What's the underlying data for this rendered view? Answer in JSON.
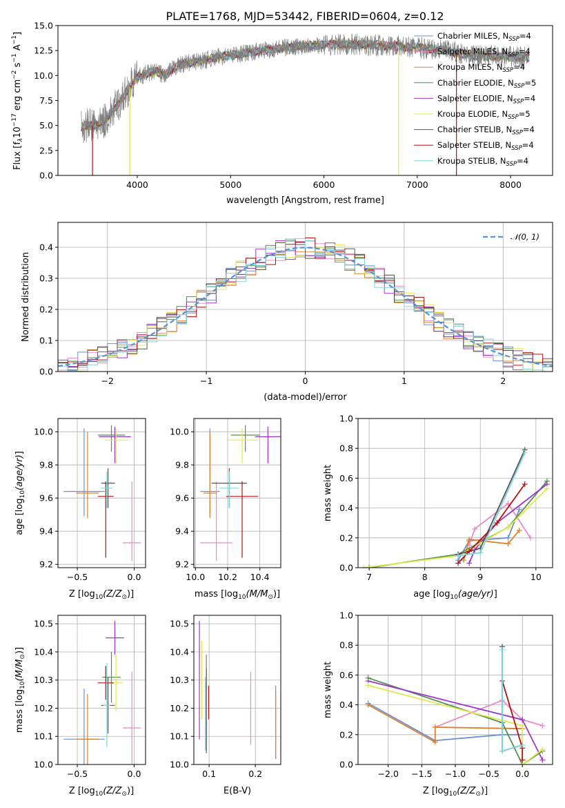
{
  "figure": {
    "title": "PLATE=1768, MJD=53442, FIBERID=0604, z=0.12",
    "colors": {
      "chabrier_miles": "#6b8fd6",
      "salpeter_miles": "#e88bc4",
      "kroupa_miles": "#d9822b",
      "chabrier_elodie": "#4f8f4f",
      "salpeter_elodie": "#a033c8",
      "kroupa_elodie": "#e2e84a",
      "chabrier_stelib": "#555555",
      "salpeter_stelib": "#b01010",
      "kroupa_stelib": "#7dd6e0",
      "data": "#808080",
      "gaussian": "#5b8fd6"
    }
  },
  "chart_data": [
    {
      "id": "spectrum",
      "type": "line",
      "xlabel": "wavelength [Angstrom, rest frame]",
      "ylabel": "Flux [$f_\\lambda 10^{-17}$ erg cm$^{-2}$ s$^{-1}$ A$^{-1}$]",
      "ylabel_text": "Flux [f",
      "xlim": [
        3150,
        8450
      ],
      "ylim": [
        0,
        15
      ],
      "xticks": [
        4000,
        5000,
        6000,
        7000,
        8000
      ],
      "yticks": [
        0.0,
        2.5,
        5.0,
        7.5,
        10.0,
        12.5,
        15.0
      ],
      "xtick_labels": [
        "4000",
        "5000",
        "6000",
        "7000",
        "8000"
      ],
      "ytick_labels": [
        "0.0",
        "2.5",
        "5.0",
        "7.5",
        "10.0",
        "12.5",
        "15.0"
      ],
      "grid": false,
      "legend_placement": "right",
      "legend": [
        {
          "text": "Chabrier MILES, N",
          "sub": "SSP",
          "suffix": "=4",
          "color_key": "chabrier_miles"
        },
        {
          "text": "Salpeter MILES, N",
          "sub": "SSP",
          "suffix": "=4",
          "color_key": "salpeter_miles"
        },
        {
          "text": "Kroupa MILES, N",
          "sub": "SSP",
          "suffix": "=4",
          "color_key": "kroupa_miles"
        },
        {
          "text": "Chabrier ELODIE, N",
          "sub": "SSP",
          "suffix": "=5",
          "color_key": "chabrier_elodie"
        },
        {
          "text": "Salpeter ELODIE, N",
          "sub": "SSP",
          "suffix": "=4",
          "color_key": "salpeter_elodie"
        },
        {
          "text": "Kroupa ELODIE, N",
          "sub": "SSP",
          "suffix": "=5",
          "color_key": "kroupa_elodie"
        },
        {
          "text": "Chabrier STELIB, N",
          "sub": "SSP",
          "suffix": "=4",
          "color_key": "chabrier_stelib"
        },
        {
          "text": "Salpeter STELIB, N",
          "sub": "SSP",
          "suffix": "=4",
          "color_key": "salpeter_stelib"
        },
        {
          "text": "Kroupa STELIB, N",
          "sub": "SSP",
          "suffix": "=4",
          "color_key": "kroupa_stelib"
        }
      ],
      "continuum": {
        "x": [
          3400,
          3500,
          3600,
          3700,
          3800,
          3900,
          4000,
          4100,
          4200,
          4300,
          4400,
          4500,
          4700,
          4900,
          5200,
          5500,
          5800,
          6100,
          6400,
          6700,
          7000,
          7300,
          7600,
          7900,
          8200
        ],
        "y": [
          4.9,
          5.0,
          5.0,
          6.0,
          7.2,
          8.6,
          9.8,
          10.2,
          10.4,
          10.0,
          10.8,
          11.2,
          11.5,
          11.9,
          12.3,
          12.7,
          13.0,
          13.1,
          13.1,
          13.0,
          12.8,
          12.5,
          12.0,
          11.9,
          11.8
        ]
      },
      "drops": [
        {
          "x": 3520,
          "color_key": "salpeter_stelib"
        },
        {
          "x": 3920,
          "color_key": "kroupa_elodie"
        },
        {
          "x": 6800,
          "color_key": "kroupa_elodie"
        },
        {
          "x": 7420,
          "color_key": "salpeter_stelib"
        }
      ]
    },
    {
      "id": "residuals",
      "type": "line",
      "xlabel": "(data-model)/error",
      "ylabel": "Normed distribution",
      "xlim": [
        -2.5,
        2.5
      ],
      "ylim": [
        0,
        0.48
      ],
      "xticks": [
        -2,
        -1,
        0,
        1,
        2
      ],
      "yticks": [
        0.0,
        0.1,
        0.2,
        0.3,
        0.4
      ],
      "xtick_labels": [
        "−2",
        "−1",
        "0",
        "1",
        "2"
      ],
      "ytick_labels": [
        "0.0",
        "0.1",
        "0.2",
        "0.3",
        "0.4"
      ],
      "grid": true,
      "legend_placement": "top-right",
      "legend": [
        {
          "text": "𝒩(0, 1)",
          "color_key": "gaussian"
        }
      ],
      "bin_edges_start": -2.5,
      "bin_width": 0.1
    },
    {
      "id": "age_vs_Z",
      "type": "scatter",
      "xlabel": "Z [log",
      "ylabel": "age  [log",
      "xlim": [
        -0.67,
        0.1
      ],
      "ylim": [
        9.18,
        10.08
      ],
      "xticks": [
        -0.5,
        0.0
      ],
      "yticks": [
        9.2,
        9.4,
        9.6,
        9.8,
        10.0
      ],
      "xtick_labels": [
        "−0.5",
        "0.0"
      ],
      "ytick_labels": [
        "9.2",
        "9.4",
        "9.6",
        "9.8",
        "10.0"
      ],
      "grid": true,
      "points": [
        {
          "x": -0.44,
          "y": 9.64,
          "xerr": 0.18,
          "yerr": [
            0.15,
            0.38
          ],
          "color_key": "chabrier_miles"
        },
        {
          "x": -0.02,
          "y": 9.33,
          "xerr": 0.08,
          "yerr": [
            0.11,
            0.37
          ],
          "color_key": "salpeter_miles"
        },
        {
          "x": -0.41,
          "y": 9.63,
          "xerr": 0.1,
          "yerr": [
            0.15,
            0.37
          ],
          "color_key": "kroupa_miles"
        },
        {
          "x": -0.2,
          "y": 9.98,
          "xerr": 0.12,
          "yerr": [
            0.1,
            0.06
          ],
          "color_key": "chabrier_elodie"
        },
        {
          "x": -0.17,
          "y": 9.97,
          "xerr": 0.14,
          "yerr": [
            0.16,
            0.06
          ],
          "color_key": "salpeter_elodie"
        },
        {
          "x": -0.16,
          "y": 9.95,
          "xerr": 0.1,
          "yerr": [
            0.14,
            0.07
          ],
          "color_key": "kroupa_elodie"
        },
        {
          "x": -0.23,
          "y": 9.69,
          "xerr": 0.06,
          "yerr": [
            0.15,
            0.09
          ],
          "color_key": "chabrier_stelib"
        },
        {
          "x": -0.25,
          "y": 9.61,
          "xerr": 0.07,
          "yerr": [
            0.37,
            0.09
          ],
          "color_key": "salpeter_stelib"
        },
        {
          "x": -0.24,
          "y": 9.66,
          "xerr": 0.05,
          "yerr": [
            0.12,
            0.1
          ],
          "color_key": "kroupa_stelib"
        }
      ]
    },
    {
      "id": "age_vs_mass",
      "type": "scatter",
      "xlabel": "mass [log",
      "xlim": [
        9.99,
        10.53
      ],
      "ylim": [
        9.18,
        10.08
      ],
      "xticks": [
        10.0,
        10.2,
        10.4
      ],
      "yticks": [
        9.2,
        9.4,
        9.6,
        9.8,
        10.0
      ],
      "xtick_labels": [
        "10.0",
        "10.2",
        "10.4"
      ],
      "ytick_labels": [
        "9.2",
        "9.4",
        "9.6",
        "9.8",
        "10.0"
      ],
      "grid": true,
      "points": [
        {
          "x": 10.09,
          "y": 9.64,
          "xerr": 0.06,
          "yerr": [
            0.15,
            0.38
          ],
          "color_key": "chabrier_miles"
        },
        {
          "x": 10.13,
          "y": 9.33,
          "xerr": 0.1,
          "yerr": [
            0.11,
            0.37
          ],
          "color_key": "salpeter_miles"
        },
        {
          "x": 10.09,
          "y": 9.63,
          "xerr": 0.04,
          "yerr": [
            0.15,
            0.37
          ],
          "color_key": "kroupa_miles"
        },
        {
          "x": 10.31,
          "y": 9.98,
          "xerr": 0.09,
          "yerr": [
            0.1,
            0.06
          ],
          "color_key": "chabrier_elodie"
        },
        {
          "x": 10.45,
          "y": 9.97,
          "xerr": 0.08,
          "yerr": [
            0.16,
            0.06
          ],
          "color_key": "salpeter_elodie"
        },
        {
          "x": 10.29,
          "y": 9.95,
          "xerr": 0.1,
          "yerr": [
            0.14,
            0.07
          ],
          "color_key": "kroupa_elodie"
        },
        {
          "x": 10.21,
          "y": 9.69,
          "xerr": 0.11,
          "yerr": [
            0.15,
            0.09
          ],
          "color_key": "chabrier_stelib"
        },
        {
          "x": 10.29,
          "y": 9.61,
          "xerr": 0.1,
          "yerr": [
            0.37,
            0.09
          ],
          "color_key": "salpeter_stelib"
        },
        {
          "x": 10.21,
          "y": 9.66,
          "xerr": 0.06,
          "yerr": [
            0.12,
            0.1
          ],
          "color_key": "kroupa_stelib"
        }
      ]
    },
    {
      "id": "mass_weight_vs_age",
      "type": "line",
      "xlabel": "age  [log",
      "ylabel": "mass weight",
      "xlim": [
        6.8,
        10.3
      ],
      "ylim": [
        0,
        1.0
      ],
      "xticks": [
        7,
        8,
        9,
        10
      ],
      "yticks": [
        0.0,
        0.2,
        0.4,
        0.6,
        0.8,
        1.0
      ],
      "xtick_labels": [
        "7",
        "8",
        "9",
        "10"
      ],
      "ytick_labels": [
        "0.0",
        "0.2",
        "0.4",
        "0.6",
        "0.8",
        "1.0"
      ],
      "grid": true,
      "series": [
        {
          "color_key": "chabrier_miles",
          "x": [
            8.6,
            8.8,
            9.5,
            9.7
          ],
          "y": [
            0.05,
            0.18,
            0.2,
            0.39
          ]
        },
        {
          "color_key": "salpeter_miles",
          "x": [
            8.8,
            8.9,
            9.5,
            9.9
          ],
          "y": [
            0.15,
            0.26,
            0.43,
            0.2
          ]
        },
        {
          "color_key": "kroupa_miles",
          "x": [
            8.7,
            8.8,
            9.5,
            9.7
          ],
          "y": [
            0.05,
            0.19,
            0.16,
            0.25
          ]
        },
        {
          "color_key": "chabrier_elodie",
          "x": [
            7.0,
            8.6,
            9.5,
            10.2
          ],
          "y": [
            0.0,
            0.09,
            0.27,
            0.58
          ]
        },
        {
          "color_key": "salpeter_elodie",
          "x": [
            8.8,
            8.9,
            9.3,
            10.2
          ],
          "y": [
            0.03,
            0.12,
            0.3,
            0.56
          ]
        },
        {
          "color_key": "kroupa_elodie",
          "x": [
            6.9,
            8.6,
            9.5,
            10.2
          ],
          "y": [
            0.0,
            0.08,
            0.27,
            0.53
          ]
        },
        {
          "color_key": "chabrier_stelib",
          "x": [
            8.6,
            9.0,
            9.8
          ],
          "y": [
            0.09,
            0.13,
            0.79
          ]
        },
        {
          "color_key": "salpeter_stelib",
          "x": [
            8.6,
            8.8,
            9.3,
            9.8
          ],
          "y": [
            0.03,
            0.11,
            0.3,
            0.56
          ]
        },
        {
          "color_key": "kroupa_stelib",
          "x": [
            8.6,
            9.0,
            9.8
          ],
          "y": [
            0.08,
            0.1,
            0.77
          ]
        }
      ]
    },
    {
      "id": "mass_vs_Z",
      "type": "scatter",
      "xlabel": "Z [log",
      "ylabel": "mass [log",
      "xlim": [
        -0.67,
        0.1
      ],
      "ylim": [
        10.0,
        10.53
      ],
      "xticks": [
        -0.5,
        0.0
      ],
      "yticks": [
        10.0,
        10.1,
        10.2,
        10.3,
        10.4,
        10.5
      ],
      "xtick_labels": [
        "−0.5",
        "0.0"
      ],
      "ytick_labels": [
        "10.0",
        "10.1",
        "10.2",
        "10.3",
        "10.4",
        "10.5"
      ],
      "grid": true,
      "points": [
        {
          "x": -0.44,
          "y": 10.09,
          "yerr": 0.18,
          "xerr": 0.18,
          "color_key": "chabrier_miles"
        },
        {
          "x": -0.02,
          "y": 10.13,
          "yerr": 0.2,
          "xerr": 0.08,
          "color_key": "salpeter_miles"
        },
        {
          "x": -0.41,
          "y": 10.09,
          "yerr": 0.16,
          "xerr": 0.1,
          "color_key": "kroupa_miles"
        },
        {
          "x": -0.2,
          "y": 10.31,
          "yerr": 0.09,
          "xerr": 0.08,
          "color_key": "chabrier_elodie"
        },
        {
          "x": -0.17,
          "y": 10.45,
          "yerr": 0.06,
          "xerr": 0.08,
          "color_key": "salpeter_elodie"
        },
        {
          "x": -0.16,
          "y": 10.29,
          "yerr": 0.1,
          "xerr": 0.06,
          "color_key": "kroupa_elodie"
        },
        {
          "x": -0.23,
          "y": 10.21,
          "yerr": 0.1,
          "xerr": 0.06,
          "color_key": "chabrier_stelib"
        },
        {
          "x": -0.25,
          "y": 10.29,
          "yerr": 0.06,
          "xerr": 0.07,
          "color_key": "salpeter_stelib"
        },
        {
          "x": -0.24,
          "y": 10.21,
          "yerr": 0.15,
          "xerr": 0.03,
          "color_key": "kroupa_stelib"
        }
      ]
    },
    {
      "id": "mass_vs_ebv",
      "type": "scatter",
      "xlabel": "E(B-V)",
      "xlim": [
        0.067,
        0.255
      ],
      "ylim": [
        10.0,
        10.53
      ],
      "xticks": [
        0.1,
        0.2
      ],
      "yticks": [
        10.0,
        10.1,
        10.2,
        10.3,
        10.4,
        10.5
      ],
      "xtick_labels": [
        "0.1",
        "0.2"
      ],
      "ytick_labels": [
        "10.0",
        "10.1",
        "10.2",
        "10.3",
        "10.4",
        "10.5"
      ],
      "grid": true,
      "points": [
        {
          "x": 0.244,
          "y": 10.15,
          "yerr": 0.13,
          "color_key": "chabrier_miles"
        },
        {
          "x": 0.19,
          "y": 10.2,
          "yerr": 0.13,
          "color_key": "salpeter_miles"
        },
        {
          "x": 0.244,
          "y": 10.14,
          "yerr": 0.12,
          "color_key": "kroupa_miles"
        },
        {
          "x": 0.094,
          "y": 10.22,
          "yerr": 0.17,
          "color_key": "chabrier_elodie"
        },
        {
          "x": 0.079,
          "y": 10.3,
          "yerr": 0.21,
          "color_key": "salpeter_elodie"
        },
        {
          "x": 0.084,
          "y": 10.3,
          "yerr": 0.14,
          "color_key": "kroupa_elodie"
        },
        {
          "x": 0.094,
          "y": 10.19,
          "yerr": 0.15,
          "color_key": "chabrier_stelib"
        },
        {
          "x": 0.099,
          "y": 10.22,
          "yerr": 0.06,
          "color_key": "salpeter_stelib"
        },
        {
          "x": 0.092,
          "y": 10.18,
          "yerr": 0.13,
          "color_key": "kroupa_stelib"
        }
      ]
    },
    {
      "id": "mass_weight_vs_Z",
      "type": "line",
      "xlabel": "Z [log",
      "ylabel": "mass weight",
      "xlim": [
        -2.45,
        0.45
      ],
      "ylim": [
        0,
        1.0
      ],
      "xticks": [
        -2.0,
        -1.5,
        -1.0,
        -0.5,
        0.0
      ],
      "yticks": [
        0.0,
        0.2,
        0.4,
        0.6,
        0.8,
        1.0
      ],
      "xtick_labels": [
        "−2.0",
        "−1.5",
        "−1.0",
        "−0.5",
        "0.0"
      ],
      "ytick_labels": [
        "0.0",
        "0.2",
        "0.4",
        "0.6",
        "0.8",
        "1.0"
      ],
      "grid": true,
      "series": [
        {
          "color_key": "chabrier_miles",
          "x": [
            -2.3,
            -1.3,
            -0.3,
            0.0
          ],
          "y": [
            0.41,
            0.16,
            0.2,
            0.2
          ]
        },
        {
          "color_key": "salpeter_miles",
          "x": [
            -1.3,
            -0.3,
            0.0,
            0.3
          ],
          "y": [
            0.25,
            0.43,
            0.3,
            0.26
          ]
        },
        {
          "color_key": "kroupa_miles",
          "x": [
            -2.3,
            -1.3,
            -1.3,
            0.0
          ],
          "y": [
            0.4,
            0.15,
            0.25,
            0.24
          ]
        },
        {
          "color_key": "chabrier_elodie",
          "x": [
            -2.3,
            -0.3,
            0.0,
            0.3
          ],
          "y": [
            0.58,
            0.28,
            0.0,
            0.09
          ]
        },
        {
          "color_key": "salpeter_elodie",
          "x": [
            -2.3,
            0.0,
            0.3
          ],
          "y": [
            0.56,
            0.3,
            0.03
          ]
        },
        {
          "color_key": "kroupa_elodie",
          "x": [
            -2.3,
            0.0,
            0.0,
            0.3
          ],
          "y": [
            0.53,
            0.26,
            0.0,
            0.1
          ]
        },
        {
          "color_key": "chabrier_stelib",
          "x": [
            -0.3,
            -0.3,
            0.0
          ],
          "y": [
            0.79,
            0.09,
            0.13
          ]
        },
        {
          "color_key": "salpeter_stelib",
          "x": [
            -0.3,
            0.0,
            0.0
          ],
          "y": [
            0.56,
            0.11,
            0.03
          ]
        },
        {
          "color_key": "kroupa_stelib",
          "x": [
            -0.3,
            -0.3,
            0.0
          ],
          "y": [
            0.77,
            0.09,
            0.13
          ]
        }
      ]
    }
  ]
}
